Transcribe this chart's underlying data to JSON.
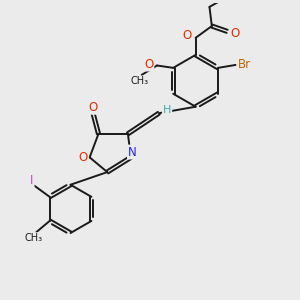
{
  "bg_color": "#ebebeb",
  "line_color": "#1a1a1a",
  "bond_lw": 1.4,
  "dbo": 0.055,
  "fs": 8.5,
  "label_colors": {
    "O": "#e03000",
    "N": "#2222dd",
    "Br": "#bb6600",
    "I": "#cc44cc",
    "H": "#44aaaa",
    "C": "#1a1a1a"
  }
}
